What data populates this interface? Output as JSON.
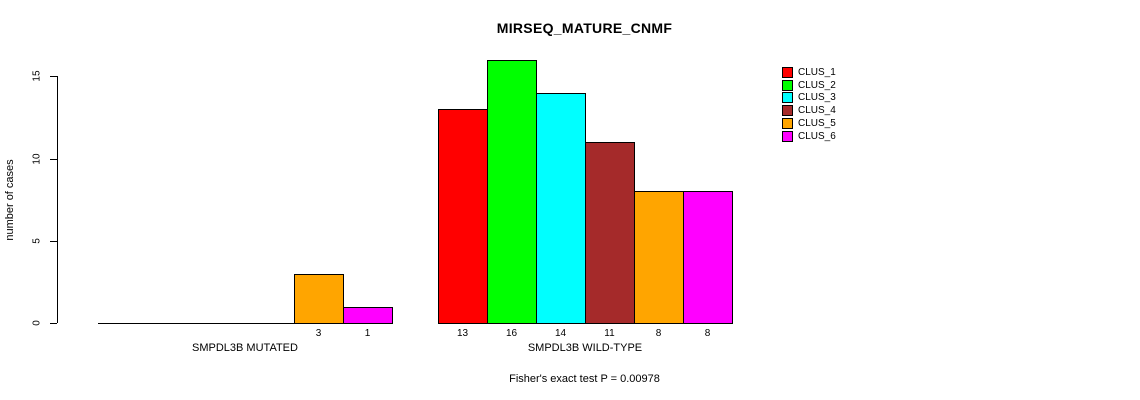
{
  "title": "MIRSEQ_MATURE_CNMF",
  "caption": "Fisher's exact test P = 0.00978",
  "chart_data": {
    "type": "bar",
    "title": "MIRSEQ_MATURE_CNMF",
    "xlabel": "",
    "ylabel": "number of cases",
    "ylim": [
      0,
      16
    ],
    "yticks": [
      0,
      5,
      10,
      15
    ],
    "grid": false,
    "legend_position": "right",
    "series_names": [
      "CLUS_1",
      "CLUS_2",
      "CLUS_3",
      "CLUS_4",
      "CLUS_5",
      "CLUS_6"
    ],
    "colors": [
      "#FF0000",
      "#00FF00",
      "#00FFFF",
      "#A52A2A",
      "#FFA500",
      "#FF00FF"
    ],
    "categories": [
      "SMPDL3B MUTATED",
      "SMPDL3B WILD-TYPE"
    ],
    "groups": [
      {
        "label": "SMPDL3B MUTATED",
        "values": [
          0,
          0,
          0,
          0,
          3,
          1
        ]
      },
      {
        "label": "SMPDL3B WILD-TYPE",
        "values": [
          13,
          16,
          14,
          11,
          8,
          8
        ]
      }
    ],
    "bar_value_labels": "shown below nonzero bars",
    "annotation": "Fisher's exact test P = 0.00978"
  }
}
